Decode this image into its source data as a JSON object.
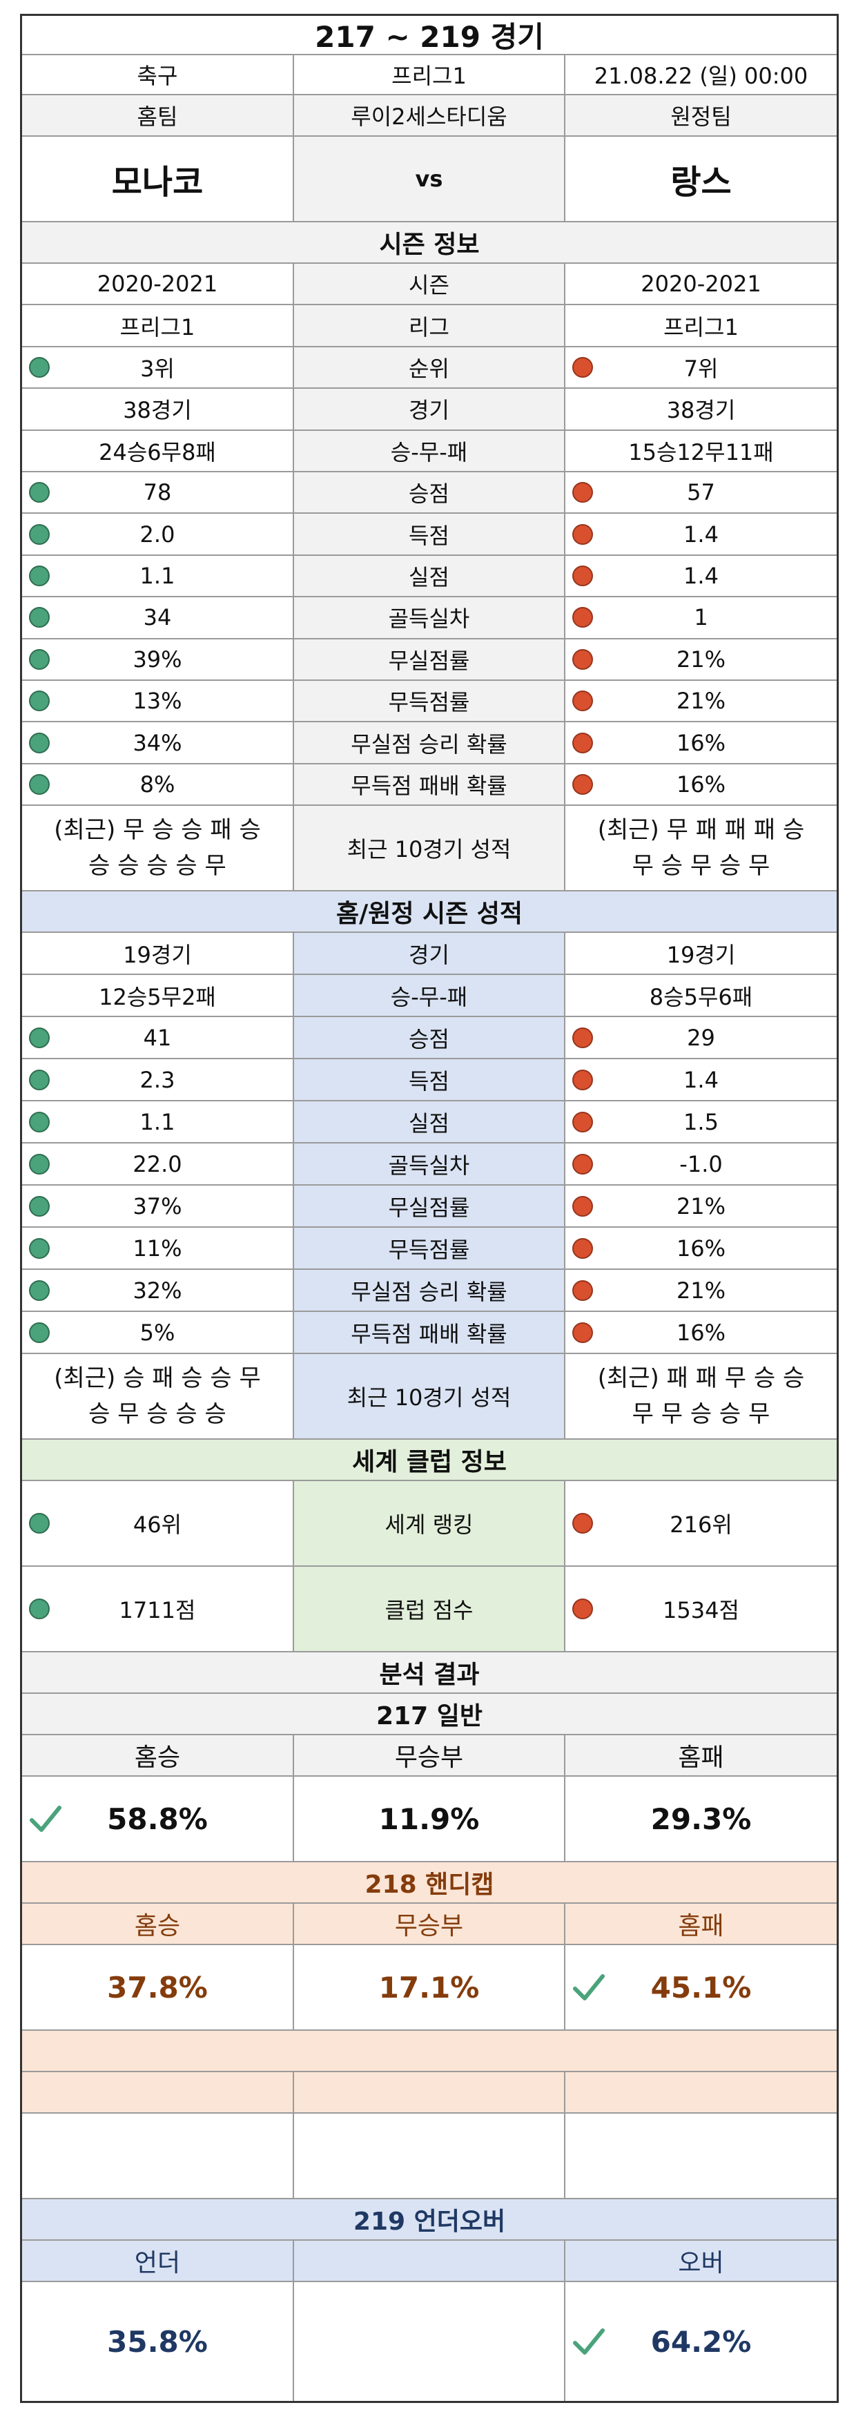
{
  "title": "217 ~ 219 경기",
  "info": {
    "sport": "축구",
    "league": "프리그1",
    "datetime": "21.08.22 (일) 00:00",
    "home_label": "홈팀",
    "venue": "루이2세스타디움",
    "away_label": "원정팀",
    "home_team": "모나코",
    "vs": "vs",
    "away_team": "랑스"
  },
  "season": {
    "header": "시즌 정보",
    "rows": [
      {
        "label": "시즌",
        "home": "2020-2021",
        "away": "2020-2021",
        "dot": false
      },
      {
        "label": "리그",
        "home": "프리그1",
        "away": "프리그1",
        "dot": false
      },
      {
        "label": "순위",
        "home": "3위",
        "away": "7위",
        "dot": true
      },
      {
        "label": "경기",
        "home": "38경기",
        "away": "38경기",
        "dot": false
      },
      {
        "label": "승-무-패",
        "home": "24승6무8패",
        "away": "15승12무11패",
        "dot": false
      },
      {
        "label": "승점",
        "home": "78",
        "away": "57",
        "dot": true
      },
      {
        "label": "득점",
        "home": "2.0",
        "away": "1.4",
        "dot": true
      },
      {
        "label": "실점",
        "home": "1.1",
        "away": "1.4",
        "dot": true
      },
      {
        "label": "골득실차",
        "home": "34",
        "away": "1",
        "dot": true
      },
      {
        "label": "무실점률",
        "home": "39%",
        "away": "21%",
        "dot": true
      },
      {
        "label": "무득점률",
        "home": "13%",
        "away": "21%",
        "dot": true
      },
      {
        "label": "무실점 승리 확률",
        "home": "34%",
        "away": "16%",
        "dot": true
      },
      {
        "label": "무득점 패배 확률",
        "home": "8%",
        "away": "16%",
        "dot": true
      }
    ],
    "recent": {
      "label": "최근 10경기 성적",
      "home_line1": "(최근) 무 승 승 패 승",
      "home_line2": "승 승 승 승 무",
      "away_line1": "(최근) 무 패 패 패 승",
      "away_line2": "무 승 무 승 무"
    }
  },
  "homeaway": {
    "header": "홈/원정 시즌 성적",
    "rows": [
      {
        "label": "경기",
        "home": "19경기",
        "away": "19경기",
        "dot": false
      },
      {
        "label": "승-무-패",
        "home": "12승5무2패",
        "away": "8승5무6패",
        "dot": false
      },
      {
        "label": "승점",
        "home": "41",
        "away": "29",
        "dot": true
      },
      {
        "label": "득점",
        "home": "2.3",
        "away": "1.4",
        "dot": true
      },
      {
        "label": "실점",
        "home": "1.1",
        "away": "1.5",
        "dot": true
      },
      {
        "label": "골득실차",
        "home": "22.0",
        "away": "-1.0",
        "dot": true
      },
      {
        "label": "무실점률",
        "home": "37%",
        "away": "21%",
        "dot": true
      },
      {
        "label": "무득점률",
        "home": "11%",
        "away": "16%",
        "dot": true
      },
      {
        "label": "무실점 승리 확률",
        "home": "32%",
        "away": "21%",
        "dot": true
      },
      {
        "label": "무득점 패배 확률",
        "home": "5%",
        "away": "16%",
        "dot": true
      }
    ],
    "recent": {
      "label": "최근 10경기 성적",
      "home_line1": "(최근) 승 패 승 승 무",
      "home_line2": "승 무 승 승 승",
      "away_line1": "(최근) 패 패 무 승 승",
      "away_line2": "무 무 승 승 무"
    }
  },
  "world": {
    "header": "세계 클럽 정보",
    "rank_label": "세계 랭킹",
    "home_rank": "46위",
    "away_rank": "216위",
    "score_label": "클럽 점수",
    "home_score": "1711점",
    "away_score": "1534점"
  },
  "analysis": {
    "header": "분석 결과",
    "general": {
      "title": "217 일반",
      "col1": "홈승",
      "col2": "무승부",
      "col3": "홈패",
      "v1": "58.8%",
      "v2": "11.9%",
      "v3": "29.3%"
    },
    "handicap": {
      "title": "218 핸디캡",
      "col1": "홈승",
      "col2": "무승부",
      "col3": "홈패",
      "v1": "37.8%",
      "v2": "17.1%",
      "v3": "45.1%"
    },
    "underover": {
      "title": "219 언더오버",
      "col1": "언더",
      "col3": "오버",
      "v1": "35.8%",
      "v3": "64.2%"
    }
  },
  "colors": {
    "win_dot": "#4aa37a",
    "lose_dot": "#d9502e",
    "check": "#4aa37a",
    "handicap_text": "#843c0c",
    "underover_text": "#1f3864"
  }
}
